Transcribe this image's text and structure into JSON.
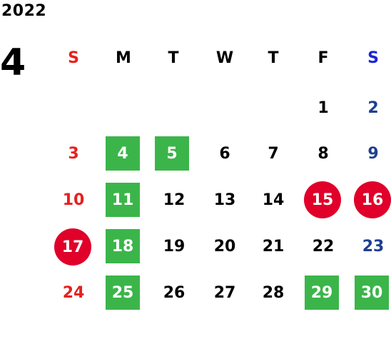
{
  "year": "2022",
  "month": "4",
  "weekdays": [
    "S",
    "M",
    "T",
    "W",
    "T",
    "F",
    "S"
  ],
  "colors": {
    "sunday_red": "#e6201f",
    "saturday_blue": "#1f3f8f",
    "weekday_header_blue": "#1a24d6",
    "highlight_green": "#3bb54a",
    "holiday_red": "#e0002a"
  },
  "weeks": [
    [
      "",
      "",
      "",
      "",
      "",
      "1",
      "2"
    ],
    [
      "3",
      "4",
      "5",
      "6",
      "7",
      "8",
      "9"
    ],
    [
      "10",
      "11",
      "12",
      "13",
      "14",
      "15",
      "16"
    ],
    [
      "17",
      "18",
      "19",
      "20",
      "21",
      "22",
      "23"
    ],
    [
      "24",
      "25",
      "26",
      "27",
      "28",
      "29",
      "30"
    ]
  ]
}
